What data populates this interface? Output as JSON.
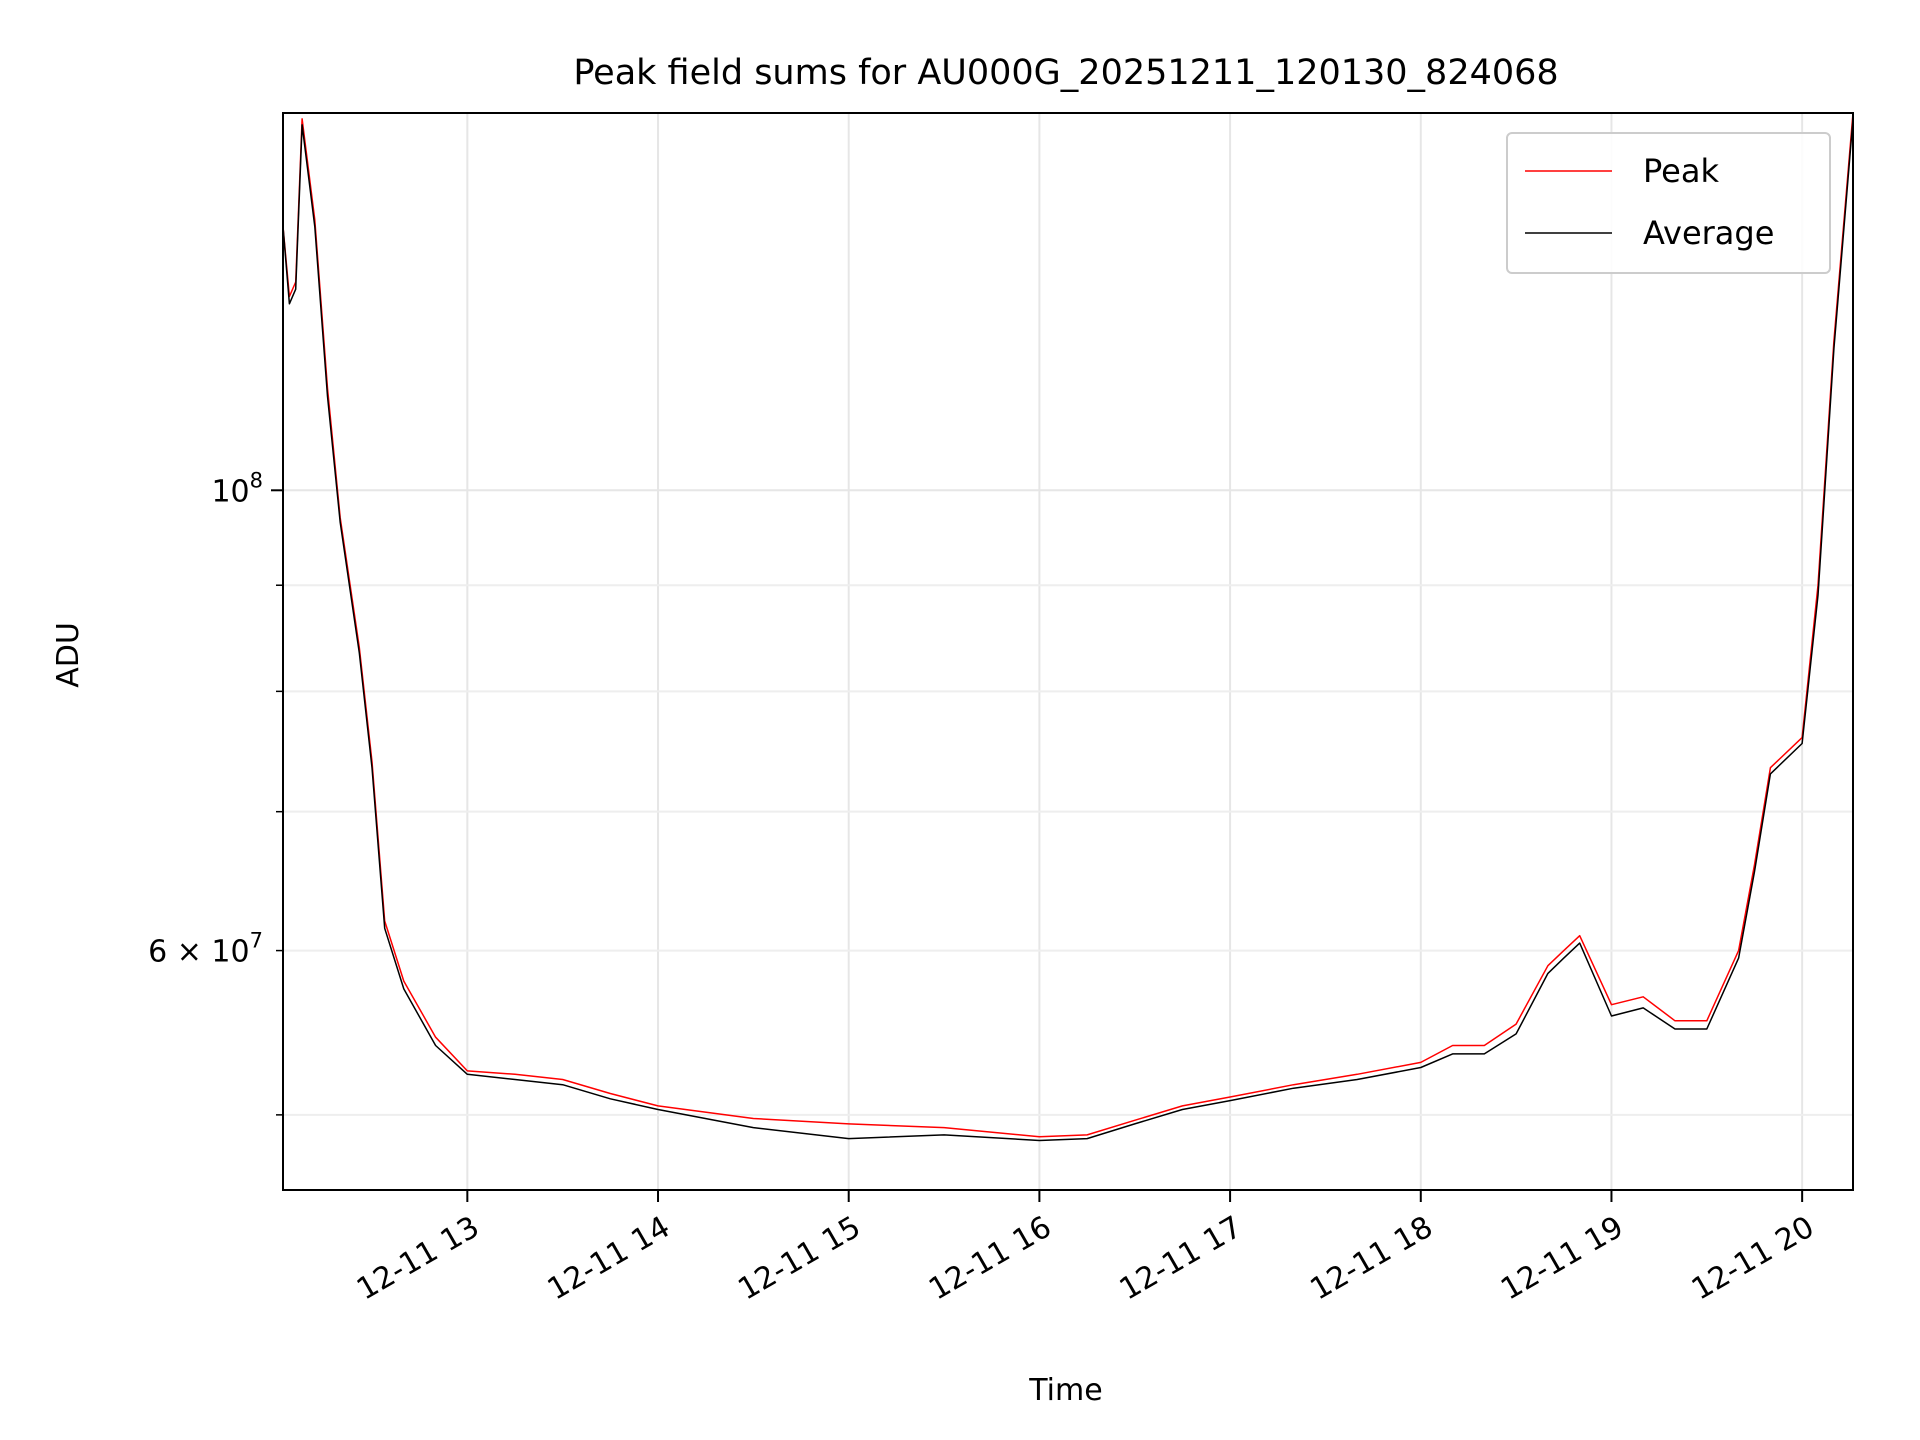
{
  "chart_data": {
    "type": "line",
    "title": "Peak field sums for AU000G_20251211_120130_824068",
    "xlabel": "Time",
    "ylabel": "ADU",
    "yscale": "log",
    "grid": true,
    "legend_position": "top-right",
    "xlim": [
      "2025-12-11 12:02:00",
      "2025-12-11 20:16:00"
    ],
    "ylim": [
      46000000,
      152000000
    ],
    "x_ticks": [
      {
        "value": "2025-12-11 13:00",
        "label": "12-11 13"
      },
      {
        "value": "2025-12-11 14:00",
        "label": "12-11 14"
      },
      {
        "value": "2025-12-11 15:00",
        "label": "12-11 15"
      },
      {
        "value": "2025-12-11 16:00",
        "label": "12-11 16"
      },
      {
        "value": "2025-12-11 17:00",
        "label": "12-11 17"
      },
      {
        "value": "2025-12-11 18:00",
        "label": "12-11 18"
      },
      {
        "value": "2025-12-11 19:00",
        "label": "12-11 19"
      },
      {
        "value": "2025-12-11 20:00",
        "label": "12-11 20"
      }
    ],
    "y_major_ticks": [
      {
        "value": 100000000,
        "base": "10",
        "exp": "8"
      }
    ],
    "y_minor_ticks": [
      {
        "value": 50000000,
        "label": ""
      },
      {
        "value": 60000000,
        "mant": "6",
        "base": "10",
        "exp": "7"
      },
      {
        "value": 70000000,
        "label": ""
      },
      {
        "value": 80000000,
        "label": ""
      },
      {
        "value": 90000000,
        "label": ""
      }
    ],
    "series": [
      {
        "name": "Peak",
        "color": "#ff0000",
        "points": [
          [
            "2025-12-11 12:02",
            134000000
          ],
          [
            "2025-12-11 12:04",
            124000000
          ],
          [
            "2025-12-11 12:06",
            126000000
          ],
          [
            "2025-12-11 12:08",
            151000000
          ],
          [
            "2025-12-11 12:12",
            135000000
          ],
          [
            "2025-12-11 12:16",
            112000000
          ],
          [
            "2025-12-11 12:20",
            97000000
          ],
          [
            "2025-12-11 12:26",
            84000000
          ],
          [
            "2025-12-11 12:30",
            74000000
          ],
          [
            "2025-12-11 12:34",
            62000000
          ],
          [
            "2025-12-11 12:40",
            58000000
          ],
          [
            "2025-12-11 12:50",
            54500000
          ],
          [
            "2025-12-11 13:00",
            52500000
          ],
          [
            "2025-12-11 13:15",
            52300000
          ],
          [
            "2025-12-11 13:30",
            52000000
          ],
          [
            "2025-12-11 13:45",
            51200000
          ],
          [
            "2025-12-11 14:00",
            50500000
          ],
          [
            "2025-12-11 14:30",
            49800000
          ],
          [
            "2025-12-11 15:00",
            49500000
          ],
          [
            "2025-12-11 15:30",
            49300000
          ],
          [
            "2025-12-11 16:00",
            48800000
          ],
          [
            "2025-12-11 16:15",
            48900000
          ],
          [
            "2025-12-11 16:30",
            49700000
          ],
          [
            "2025-12-11 16:45",
            50500000
          ],
          [
            "2025-12-11 17:00",
            51000000
          ],
          [
            "2025-12-11 17:20",
            51700000
          ],
          [
            "2025-12-11 17:40",
            52300000
          ],
          [
            "2025-12-11 18:00",
            53000000
          ],
          [
            "2025-12-11 18:10",
            54000000
          ],
          [
            "2025-12-11 18:20",
            54000000
          ],
          [
            "2025-12-11 18:30",
            55300000
          ],
          [
            "2025-12-11 18:40",
            59000000
          ],
          [
            "2025-12-11 18:45",
            60000000
          ],
          [
            "2025-12-11 18:50",
            61000000
          ],
          [
            "2025-12-11 19:00",
            56500000
          ],
          [
            "2025-12-11 19:10",
            57000000
          ],
          [
            "2025-12-11 19:20",
            55500000
          ],
          [
            "2025-12-11 19:30",
            55500000
          ],
          [
            "2025-12-11 19:40",
            60000000
          ],
          [
            "2025-12-11 19:45",
            66000000
          ],
          [
            "2025-12-11 19:50",
            73500000
          ],
          [
            "2025-12-11 20:00",
            76000000
          ],
          [
            "2025-12-11 20:05",
            90000000
          ],
          [
            "2025-12-11 20:10",
            118000000
          ],
          [
            "2025-12-11 20:16",
            152000000
          ]
        ]
      },
      {
        "name": "Average",
        "color": "#000000",
        "points": [
          [
            "2025-12-11 12:02",
            134000000
          ],
          [
            "2025-12-11 12:04",
            123000000
          ],
          [
            "2025-12-11 12:06",
            125000000
          ],
          [
            "2025-12-11 12:08",
            150000000
          ],
          [
            "2025-12-11 12:12",
            134000000
          ],
          [
            "2025-12-11 12:16",
            111000000
          ],
          [
            "2025-12-11 12:20",
            96500000
          ],
          [
            "2025-12-11 12:26",
            83500000
          ],
          [
            "2025-12-11 12:30",
            73500000
          ],
          [
            "2025-12-11 12:34",
            61500000
          ],
          [
            "2025-12-11 12:40",
            57500000
          ],
          [
            "2025-12-11 12:50",
            54000000
          ],
          [
            "2025-12-11 13:00",
            52300000
          ],
          [
            "2025-12-11 13:15",
            52000000
          ],
          [
            "2025-12-11 13:30",
            51700000
          ],
          [
            "2025-12-11 13:45",
            50900000
          ],
          [
            "2025-12-11 14:00",
            50300000
          ],
          [
            "2025-12-11 14:30",
            49300000
          ],
          [
            "2025-12-11 15:00",
            48700000
          ],
          [
            "2025-12-11 15:30",
            48900000
          ],
          [
            "2025-12-11 16:00",
            48600000
          ],
          [
            "2025-12-11 16:15",
            48700000
          ],
          [
            "2025-12-11 16:30",
            49500000
          ],
          [
            "2025-12-11 16:45",
            50300000
          ],
          [
            "2025-12-11 17:00",
            50800000
          ],
          [
            "2025-12-11 17:20",
            51500000
          ],
          [
            "2025-12-11 17:40",
            52000000
          ],
          [
            "2025-12-11 18:00",
            52700000
          ],
          [
            "2025-12-11 18:10",
            53500000
          ],
          [
            "2025-12-11 18:20",
            53500000
          ],
          [
            "2025-12-11 18:30",
            54700000
          ],
          [
            "2025-12-11 18:40",
            58500000
          ],
          [
            "2025-12-11 18:45",
            59500000
          ],
          [
            "2025-12-11 18:50",
            60500000
          ],
          [
            "2025-12-11 19:00",
            55800000
          ],
          [
            "2025-12-11 19:10",
            56300000
          ],
          [
            "2025-12-11 19:20",
            55000000
          ],
          [
            "2025-12-11 19:30",
            55000000
          ],
          [
            "2025-12-11 19:40",
            59500000
          ],
          [
            "2025-12-11 19:45",
            65500000
          ],
          [
            "2025-12-11 19:50",
            73000000
          ],
          [
            "2025-12-11 20:00",
            75500000
          ],
          [
            "2025-12-11 20:05",
            89000000
          ],
          [
            "2025-12-11 20:10",
            117000000
          ],
          [
            "2025-12-11 20:16",
            151000000
          ]
        ]
      }
    ]
  }
}
